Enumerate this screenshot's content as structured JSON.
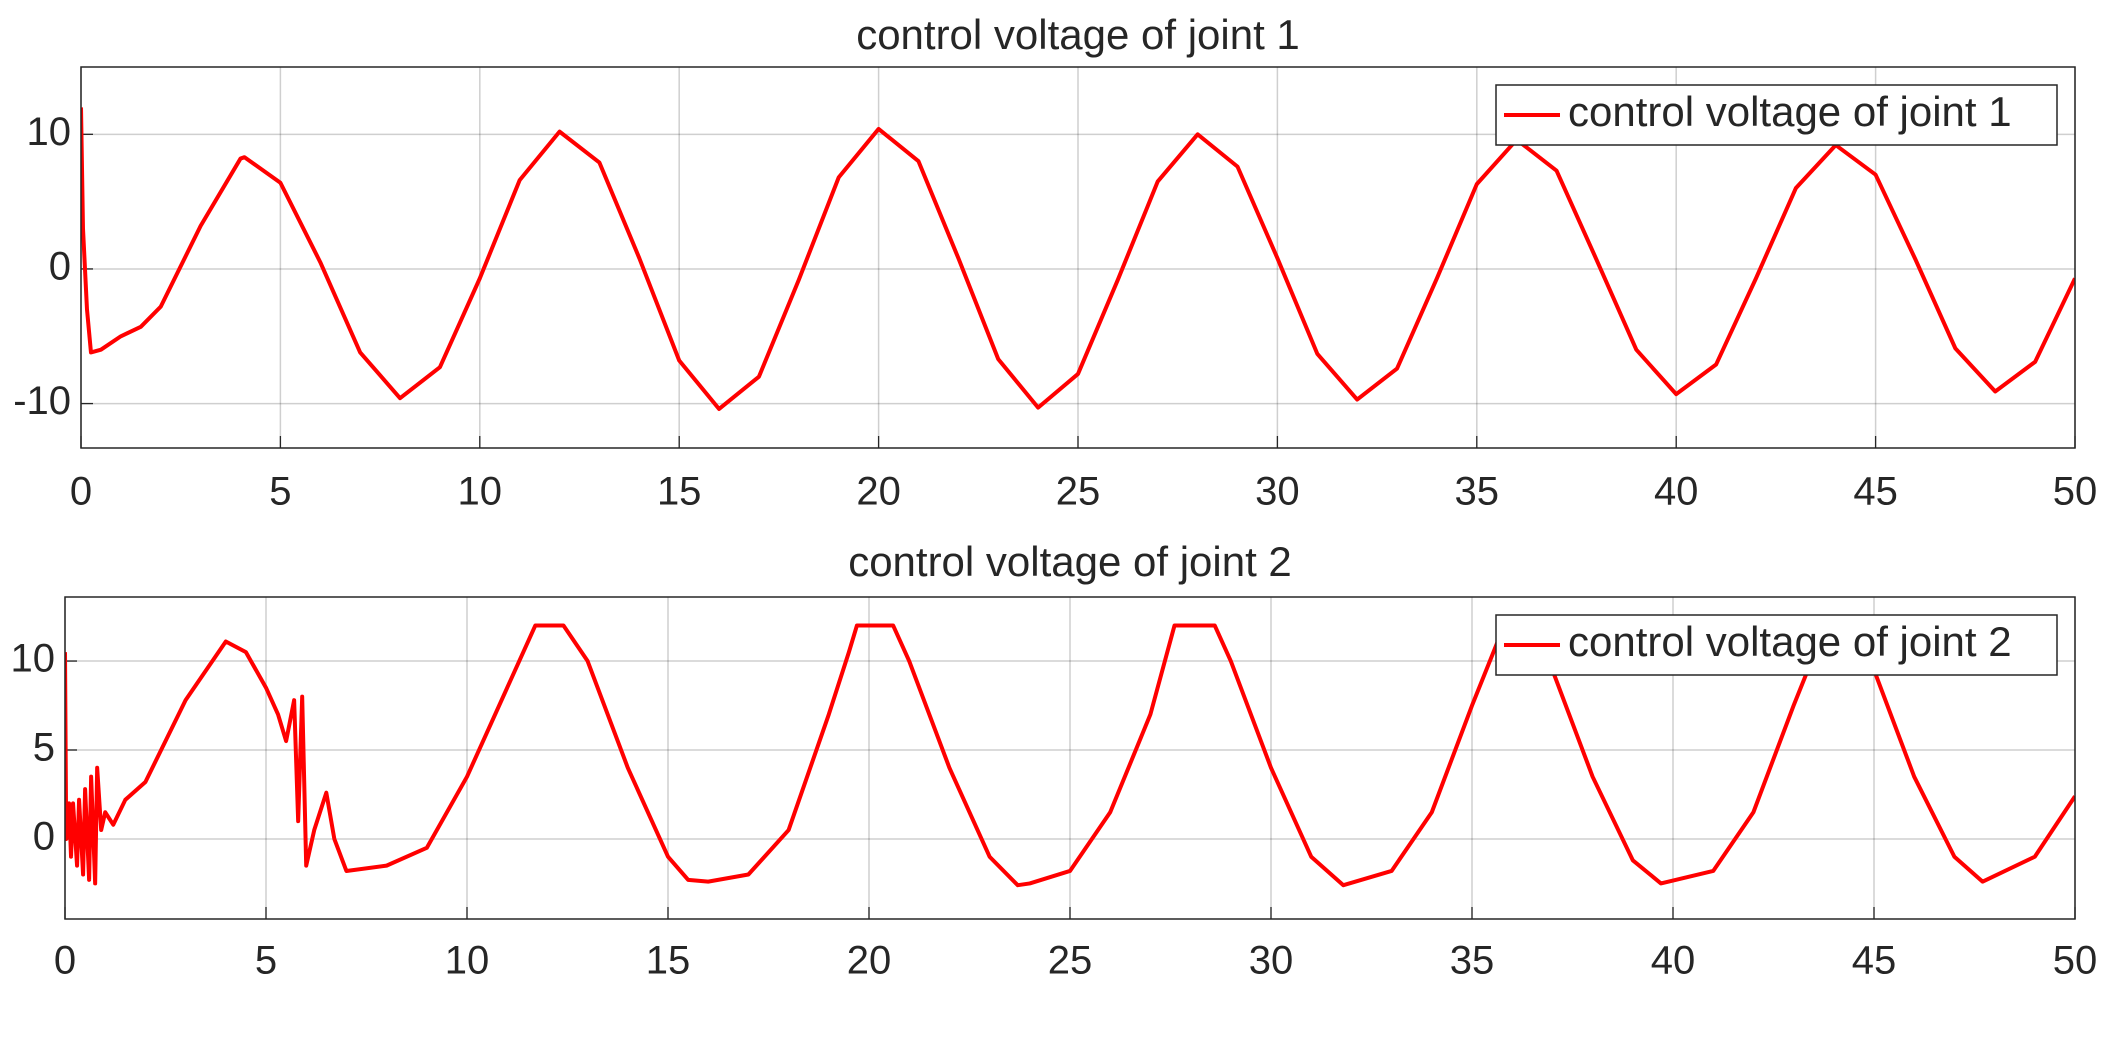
{
  "chart_data": [
    {
      "type": "line",
      "title": "control voltage of joint 1",
      "x": [
        0,
        0.05,
        0.15,
        0.25,
        0.5,
        1,
        1.5,
        2,
        3,
        4,
        4.1,
        5,
        6,
        7,
        8,
        9,
        10,
        11,
        12,
        13,
        14,
        15,
        16,
        17,
        18,
        19,
        20,
        21,
        22,
        23,
        24,
        25,
        26,
        27,
        28,
        29,
        30,
        31,
        32,
        33,
        34,
        35,
        36,
        37,
        38,
        39,
        40,
        41,
        42,
        43,
        44,
        45,
        46,
        47,
        48,
        49,
        50
      ],
      "series": [
        {
          "name": "control voltage of joint 1",
          "color": "#ff0000",
          "values": [
            12,
            3,
            -3,
            -6.2,
            -6,
            -5,
            -4.3,
            -2.8,
            3.2,
            8.2,
            8.3,
            6.4,
            0.5,
            -6.2,
            -9.6,
            -7.3,
            -0.7,
            6.6,
            10.2,
            7.9,
            0.8,
            -6.8,
            -10.4,
            -8,
            -0.8,
            6.8,
            10.4,
            8,
            0.8,
            -6.7,
            -10.3,
            -7.8,
            -0.8,
            6.5,
            10,
            7.6,
            0.8,
            -6.3,
            -9.7,
            -7.4,
            -0.7,
            6.3,
            9.6,
            7.3,
            0.7,
            -6,
            -9.3,
            -7.1,
            -0.7,
            6,
            9.2,
            7,
            0.7,
            -5.9,
            -9.1,
            -6.9,
            -0.7
          ]
        }
      ],
      "xlim": [
        0,
        50
      ],
      "ylim": [
        -13.3,
        15
      ],
      "xticks": [
        0,
        5,
        10,
        15,
        20,
        25,
        30,
        35,
        40,
        45,
        50
      ],
      "yticks": [
        -10,
        0,
        10
      ],
      "grid": true,
      "legend": "upper right"
    },
    {
      "type": "line",
      "title": "control voltage of joint 2",
      "x": [
        0,
        0.03,
        0.1,
        0.15,
        0.2,
        0.3,
        0.35,
        0.45,
        0.5,
        0.6,
        0.65,
        0.75,
        0.8,
        0.9,
        1,
        1.2,
        1.5,
        2,
        3,
        4,
        4.5,
        5,
        5.3,
        5.5,
        5.7,
        5.8,
        5.9,
        6,
        6.2,
        6.5,
        6.7,
        7,
        8,
        9,
        10,
        11,
        11.7,
        12.4,
        13,
        14,
        15,
        15.5,
        16,
        17,
        18,
        19,
        19.5,
        19.7,
        20.6,
        21,
        22,
        23,
        23.7,
        24,
        25,
        26,
        27,
        27.6,
        28.6,
        29,
        30,
        31,
        31.8,
        33,
        34,
        35,
        35.8,
        36.4,
        37,
        38,
        39,
        39.7,
        41,
        42,
        43,
        43.8,
        44.4,
        45,
        46,
        47,
        47.7,
        49,
        50
      ],
      "series": [
        {
          "name": "control voltage of joint 2",
          "color": "#ff0000",
          "values": [
            10.5,
            0,
            2,
            -1,
            2,
            -1.5,
            2.2,
            -2,
            2.8,
            -2.3,
            3.5,
            -2.5,
            4,
            0.5,
            1.5,
            0.8,
            2.2,
            3.2,
            7.8,
            11.1,
            10.5,
            8.5,
            7,
            5.5,
            7.8,
            1,
            8,
            -1.5,
            0.5,
            2.6,
            0,
            -1.8,
            -1.5,
            -0.5,
            3.5,
            8.5,
            12,
            12,
            10,
            4,
            -1,
            -2.3,
            -2.4,
            -2,
            0.5,
            7,
            10.5,
            12,
            12,
            10,
            4,
            -1,
            -2.6,
            -2.5,
            -1.8,
            1.5,
            7,
            12,
            12,
            10,
            4,
            -1,
            -2.6,
            -1.8,
            1.5,
            7.5,
            12,
            12,
            9.5,
            3.5,
            -1.2,
            -2.5,
            -1.8,
            1.5,
            7.5,
            12,
            12,
            9.5,
            3.5,
            -1,
            -2.4,
            -1,
            2.4
          ]
        }
      ],
      "xlim": [
        0,
        50
      ],
      "ylim": [
        -4.5,
        13.6
      ],
      "xticks": [
        0,
        5,
        10,
        15,
        20,
        25,
        30,
        35,
        40,
        45,
        50
      ],
      "yticks": [
        0,
        5,
        10
      ],
      "grid": true,
      "legend": "upper right"
    }
  ]
}
